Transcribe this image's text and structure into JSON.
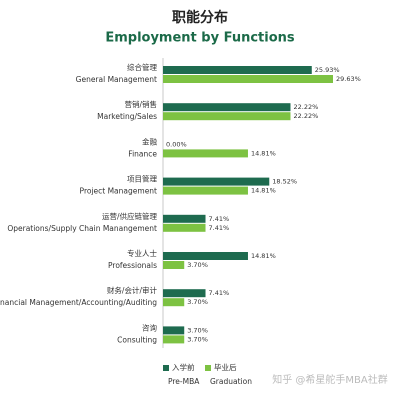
{
  "chart_data": {
    "type": "bar",
    "orientation": "horizontal",
    "title": "职能分布",
    "subtitle": "Employment by Functions",
    "categories_zh": [
      "综合管理",
      "营销/销售",
      "金融",
      "项目管理",
      "运营/供应链管理",
      "专业人士",
      "财务/会计/审计",
      "咨询"
    ],
    "categories": [
      "General Management",
      "Marketing/Sales",
      "Finance",
      "Project Management",
      "Operations/Supply Chain Manangement",
      "Professionals",
      "Financial Management/Accounting/Auditing",
      "Consulting"
    ],
    "series": [
      {
        "name_zh": "入学前",
        "name": "Pre-MBA",
        "color": "#1e6b4f",
        "values": [
          25.93,
          22.22,
          0.0,
          18.52,
          7.41,
          14.81,
          7.41,
          3.7
        ],
        "value_labels": [
          "25.93%",
          "22.22%",
          "0.00%",
          "18.52%",
          "7.41%",
          "14.81%",
          "7.41%",
          "3.70%"
        ]
      },
      {
        "name_zh": "毕业后",
        "name": "Graduation",
        "color": "#7dc242",
        "values": [
          29.63,
          22.22,
          14.81,
          14.81,
          7.41,
          3.7,
          3.7,
          3.7
        ],
        "value_labels": [
          "29.63%",
          "22.22%",
          "14.81%",
          "14.81%",
          "7.41%",
          "3.70%",
          "3.70%",
          "3.70%"
        ]
      }
    ],
    "legend": "bottom",
    "watermark": "知乎 @希星舵手MBA社群"
  }
}
